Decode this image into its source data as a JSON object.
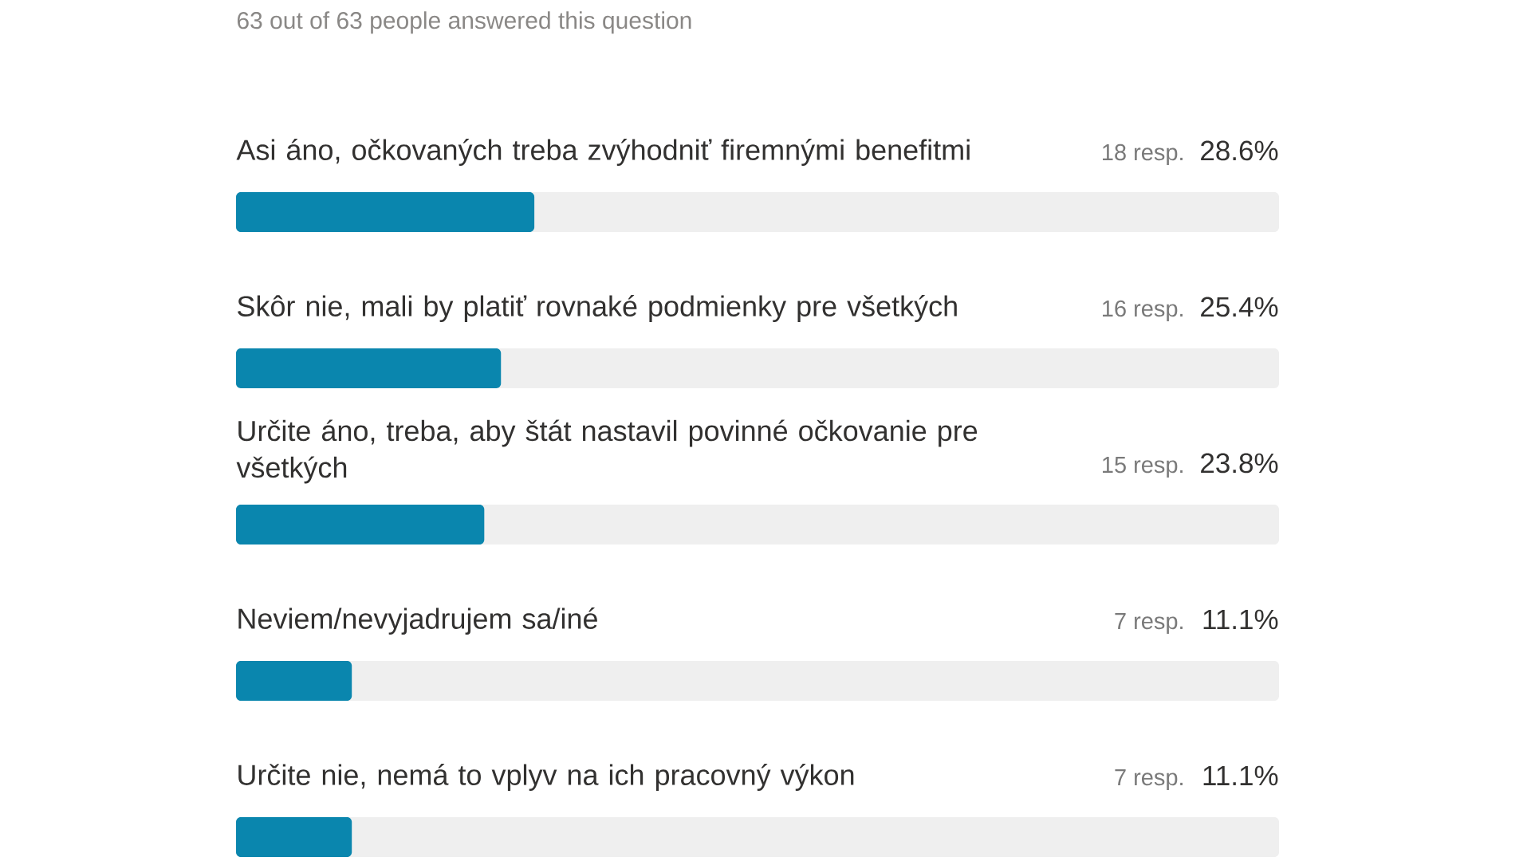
{
  "chart_data": {
    "type": "bar",
    "orientation": "horizontal",
    "subtitle": "63 out of 63 people answered this question",
    "categories": [
      "Asi áno, očkovaných treba zvýhodniť firemnými benefitmi",
      "Skôr nie, mali by platiť rovnaké podmienky pre všetkých",
      "Určite áno, treba, aby štát nastavil povinné očkovanie pre všetkých",
      "Neviem/nevyjadrujem sa/iné",
      "Určite nie, nemá to vplyv na ich pracovný výkon"
    ],
    "values": [
      28.6,
      25.4,
      23.8,
      11.1,
      11.1
    ],
    "value_labels": [
      "28.6%",
      "25.4%",
      "23.8%",
      "11.1%",
      "11.1%"
    ],
    "annotations": [
      "18 resp.",
      "16 resp.",
      "15 resp.",
      "7 resp.",
      "7 resp."
    ],
    "color": "#0a86ae",
    "xlim": [
      0,
      100
    ],
    "tick_labels": "y"
  }
}
